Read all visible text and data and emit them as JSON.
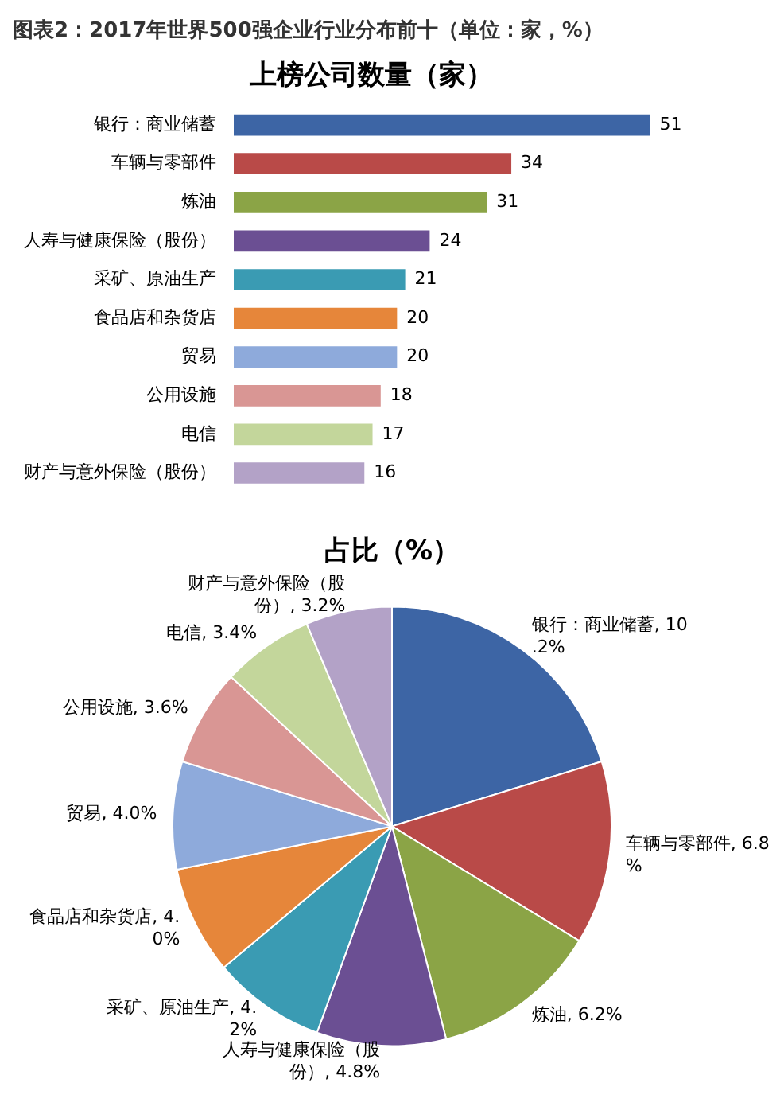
{
  "chart_data": [
    {
      "type": "bar",
      "orientation": "horizontal",
      "title": "图表2：2017年世界500强企业行业分布前十（单位：家，%）",
      "subtitle": "上榜公司数量（家）",
      "categories": [
        "银行：商业储蓄",
        "车辆与零部件",
        "炼油",
        "人寿与健康保险（股份）",
        "采矿、原油生产",
        "食品店和杂货店",
        "贸易",
        "公用设施",
        "电信",
        "财产与意外保险（股份）"
      ],
      "values": [
        51,
        34,
        31,
        24,
        21,
        20,
        20,
        18,
        17,
        16
      ],
      "colors": [
        "#3d65a5",
        "#b94a48",
        "#8ba446",
        "#6b4f93",
        "#3a9bb3",
        "#e6863a",
        "#8eaadb",
        "#d99694",
        "#c3d69b",
        "#b3a2c7"
      ],
      "data_labels": true
    },
    {
      "type": "pie",
      "title": "占比（%）",
      "categories": [
        "银行：商业储蓄",
        "车辆与零部件",
        "炼油",
        "人寿与健康保险（股份）",
        "采矿、原油生产",
        "食品店和杂货店",
        "贸易",
        "公用设施",
        "电信",
        "财产与意外保险（股份）"
      ],
      "values": [
        10.2,
        6.8,
        6.2,
        4.8,
        4.2,
        4.0,
        4.0,
        3.6,
        3.4,
        3.2
      ],
      "value_labels": [
        "10.2%",
        "6.8%",
        "6.2%",
        "4.8%",
        "4.2%",
        "4.0%",
        "4.0%",
        "3.6%",
        "3.4%",
        "3.2%"
      ],
      "colors": [
        "#3d65a5",
        "#b94a48",
        "#8ba446",
        "#6b4f93",
        "#3a9bb3",
        "#e6863a",
        "#8eaadb",
        "#d99694",
        "#c3d69b",
        "#b3a2c7"
      ]
    }
  ]
}
